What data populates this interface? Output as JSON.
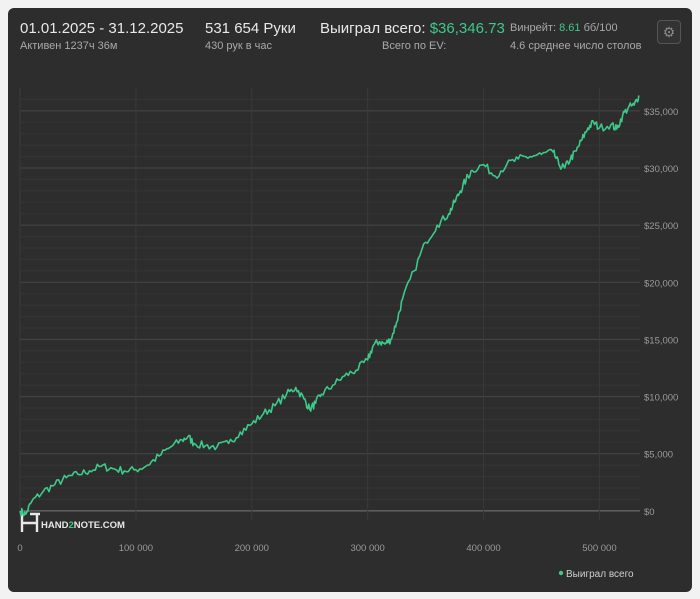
{
  "header": {
    "date_range": "01.01.2025 - 31.12.2025",
    "active": "Активен 1237ч 36м",
    "hands": "531 654 Руки",
    "hands_per_hour": "430 рук в час",
    "won_label": "Выиграл всего:",
    "won_value": "$36,346.73",
    "ev_label": "Всего по EV:",
    "winrate_label": "Винрейт:",
    "winrate_value": "8.61",
    "winrate_unit": "бб/100",
    "tables": "4.6 среднее число столов",
    "settings_icon": "gear-icon"
  },
  "watermark": {
    "hand": "HAND",
    "two": "2",
    "note": "NOTE.COM"
  },
  "colors": {
    "line": "#3cc98a",
    "background": "#2d2d2d",
    "grid": "#3d3d3d",
    "text": "#9a9a9a"
  },
  "chart_data": {
    "type": "line",
    "title": "",
    "xlabel": "",
    "ylabel": "",
    "xlim": [
      0,
      535000
    ],
    "ylim": [
      -800,
      37000
    ],
    "x_ticks": [
      0,
      100000,
      200000,
      300000,
      400000,
      500000
    ],
    "x_tick_labels": [
      "0",
      "100 000",
      "200 000",
      "300 000",
      "400 000",
      "500 000"
    ],
    "y_ticks": [
      0,
      5000,
      10000,
      15000,
      20000,
      25000,
      30000,
      35000
    ],
    "y_tick_labels": [
      "$0",
      "$5,000",
      "$10,000",
      "$15,000",
      "$20,000",
      "$25,000",
      "$30,000",
      "$35,000"
    ],
    "grid": true,
    "legend_position": "bottom-right",
    "series": [
      {
        "name": "Выиграл всего",
        "color": "#3cc98a",
        "points": [
          [
            0,
            0
          ],
          [
            5000,
            -300
          ],
          [
            10000,
            800
          ],
          [
            20000,
            1700
          ],
          [
            30000,
            2300
          ],
          [
            40000,
            2900
          ],
          [
            50000,
            3200
          ],
          [
            60000,
            3500
          ],
          [
            70000,
            3900
          ],
          [
            80000,
            3700
          ],
          [
            90000,
            3500
          ],
          [
            100000,
            3600
          ],
          [
            110000,
            4000
          ],
          [
            120000,
            4800
          ],
          [
            130000,
            5600
          ],
          [
            140000,
            6200
          ],
          [
            145000,
            6500
          ],
          [
            150000,
            5900
          ],
          [
            160000,
            5700
          ],
          [
            170000,
            5600
          ],
          [
            180000,
            5900
          ],
          [
            190000,
            6900
          ],
          [
            200000,
            7600
          ],
          [
            210000,
            8500
          ],
          [
            220000,
            9200
          ],
          [
            230000,
            10200
          ],
          [
            238000,
            10800
          ],
          [
            245000,
            9800
          ],
          [
            250000,
            8900
          ],
          [
            255000,
            9400
          ],
          [
            260000,
            10200
          ],
          [
            270000,
            11000
          ],
          [
            280000,
            11800
          ],
          [
            290000,
            12300
          ],
          [
            300000,
            13200
          ],
          [
            305000,
            14500
          ],
          [
            310000,
            14800
          ],
          [
            315000,
            14600
          ],
          [
            320000,
            15000
          ],
          [
            325000,
            16500
          ],
          [
            330000,
            18500
          ],
          [
            340000,
            21000
          ],
          [
            350000,
            23500
          ],
          [
            360000,
            25000
          ],
          [
            370000,
            26000
          ],
          [
            375000,
            27000
          ],
          [
            380000,
            28000
          ],
          [
            385000,
            29000
          ],
          [
            390000,
            29800
          ],
          [
            400000,
            30300
          ],
          [
            410000,
            29300
          ],
          [
            420000,
            30300
          ],
          [
            430000,
            30800
          ],
          [
            440000,
            31000
          ],
          [
            450000,
            31200
          ],
          [
            460000,
            31400
          ],
          [
            465000,
            30300
          ],
          [
            470000,
            30000
          ],
          [
            475000,
            30800
          ],
          [
            480000,
            31500
          ],
          [
            485000,
            32500
          ],
          [
            490000,
            33500
          ],
          [
            495000,
            34000
          ],
          [
            500000,
            33500
          ],
          [
            510000,
            33800
          ],
          [
            515000,
            33400
          ],
          [
            520000,
            34600
          ],
          [
            525000,
            35300
          ],
          [
            530000,
            35500
          ],
          [
            534000,
            36346.73
          ]
        ]
      }
    ]
  }
}
